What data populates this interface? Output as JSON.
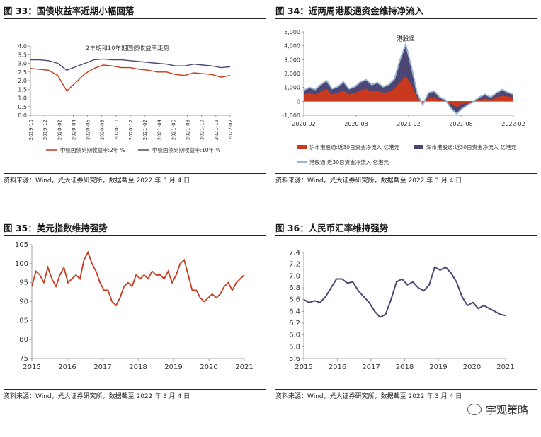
{
  "source_note": "资料来源：Wind，光大证券研究所，数据截至 2022 年 3 月 4 日",
  "watermark": "宇观策略",
  "colors": {
    "red": "#c8391d",
    "navy": "#4c4675",
    "light_blue": "#9ab7d1"
  },
  "chart_data": [
    {
      "id": "fig33",
      "figure_title": "图 33：国债收益率近期小幅回落",
      "type": "line",
      "title": "2年期和10年期国债收益率走势",
      "ylim": [
        0,
        4
      ],
      "yticks": [
        "4.0",
        "3.5",
        "3.0",
        "2.5",
        "2.0",
        "1.5",
        "1.0",
        "0.5",
        "0.0"
      ],
      "xticks": [
        "2019-10",
        "2019-12",
        "2020-02",
        "2020-04",
        "2020-06",
        "2020-08",
        "2020-10",
        "2020-12",
        "2021-02",
        "2021-04",
        "2021-06",
        "2021-08",
        "2021-10",
        "2021-12",
        "2022-02"
      ],
      "series": [
        {
          "name": "中债国债到期收益率:2年 %",
          "color": "#c8391d",
          "values": [
            2.7,
            2.65,
            2.6,
            2.3,
            1.4,
            1.9,
            2.4,
            2.7,
            2.9,
            2.85,
            2.75,
            2.75,
            2.65,
            2.6,
            2.5,
            2.5,
            2.35,
            2.3,
            2.45,
            2.4,
            2.35,
            2.2,
            2.3
          ]
        },
        {
          "name": "中债国债到期收益率:10年 %",
          "color": "#4c4675",
          "values": [
            3.2,
            3.2,
            3.15,
            3.0,
            2.6,
            2.8,
            3.0,
            3.2,
            3.25,
            3.2,
            3.2,
            3.15,
            3.1,
            3.05,
            3.0,
            2.95,
            2.85,
            2.85,
            2.95,
            2.9,
            2.85,
            2.75,
            2.8
          ]
        }
      ]
    },
    {
      "id": "fig34",
      "figure_title": "图 34：近两周港股通资金维持净流入",
      "type": "area",
      "ylim": [
        -1000,
        5000
      ],
      "yticks": [
        "5,000",
        "4,000",
        "3,000",
        "2,000",
        "1,000",
        "0",
        "-1,000"
      ],
      "xticks": [
        "2020-02",
        "2020-08",
        "2021-02",
        "2021-08",
        "2022-02"
      ],
      "annotation": "港股通",
      "series": [
        {
          "name": "沪市港股通:近30日资金净流入 亿港元",
          "color": "#c8391d",
          "values": [
            500,
            600,
            500,
            700,
            900,
            500,
            600,
            800,
            500,
            600,
            800,
            900,
            700,
            800,
            600,
            700,
            900,
            1400,
            1800,
            1200,
            300,
            -100,
            200,
            300,
            100,
            0,
            -200,
            -400,
            -200,
            -100,
            0,
            100,
            200,
            100,
            300,
            400,
            350,
            300
          ]
        },
        {
          "name": "深市港股通:近30日资金净流入 亿港元",
          "color": "#4c4675",
          "values": [
            300,
            400,
            350,
            500,
            600,
            400,
            450,
            600,
            400,
            450,
            600,
            650,
            500,
            550,
            450,
            500,
            700,
            1600,
            2300,
            1300,
            300,
            -150,
            400,
            450,
            200,
            100,
            -300,
            -500,
            -300,
            -150,
            0,
            200,
            300,
            200,
            300,
            450,
            300,
            200
          ]
        },
        {
          "name": "港股通:近30日资金净流入 亿港元",
          "color": "#9ab7d1",
          "values": [
            800,
            1000,
            850,
            1200,
            1500,
            900,
            1050,
            1400,
            900,
            1050,
            1400,
            1550,
            1200,
            1350,
            1050,
            1200,
            1600,
            3000,
            4100,
            2500,
            600,
            -250,
            600,
            750,
            300,
            100,
            -500,
            -900,
            -500,
            -250,
            0,
            300,
            500,
            300,
            600,
            850,
            650,
            500
          ]
        }
      ]
    },
    {
      "id": "fig35",
      "figure_title": "图 35：美元指数维持强势",
      "type": "line",
      "ylim": [
        75,
        105
      ],
      "yticks": [
        "105",
        "100",
        "95",
        "90",
        "85",
        "80",
        "75"
      ],
      "xticks": [
        "2015",
        "2016",
        "2017",
        "2018",
        "2019",
        "2020",
        "2021"
      ],
      "series": [
        {
          "name": "美元指数",
          "color": "#c8391d",
          "values": [
            94,
            98,
            97,
            95,
            99,
            96,
            94,
            97,
            99,
            95,
            96,
            97,
            96,
            101,
            103,
            100,
            98,
            95,
            93,
            93,
            90,
            89,
            91,
            94,
            95,
            94,
            97,
            96,
            97,
            96,
            98,
            97,
            97,
            96,
            98,
            95,
            97,
            100,
            101,
            97,
            93,
            93,
            91,
            90,
            91,
            92,
            91,
            92,
            94,
            95,
            93,
            95,
            96,
            97
          ]
        }
      ]
    },
    {
      "id": "fig36",
      "figure_title": "图 36：人民币汇率维持强势",
      "type": "line",
      "ylim": [
        5.6,
        7.4
      ],
      "yticks": [
        "7.4",
        "7.2",
        "7.0",
        "6.8",
        "6.6",
        "6.4",
        "6.2",
        "6.0",
        "5.8",
        "5.6"
      ],
      "xticks": [
        "2015",
        "2016",
        "2017",
        "2018",
        "2019",
        "2020",
        "2021"
      ],
      "series": [
        {
          "name": "人民币汇率",
          "color": "#4c4675",
          "values": [
            6.6,
            6.55,
            6.58,
            6.55,
            6.65,
            6.8,
            6.95,
            6.95,
            6.88,
            6.9,
            6.75,
            6.65,
            6.55,
            6.4,
            6.3,
            6.35,
            6.6,
            6.9,
            6.95,
            6.85,
            6.9,
            6.8,
            6.75,
            6.85,
            7.15,
            7.1,
            7.15,
            7.05,
            6.9,
            6.65,
            6.5,
            6.55,
            6.45,
            6.5,
            6.45,
            6.4,
            6.35,
            6.33
          ]
        }
      ]
    }
  ]
}
